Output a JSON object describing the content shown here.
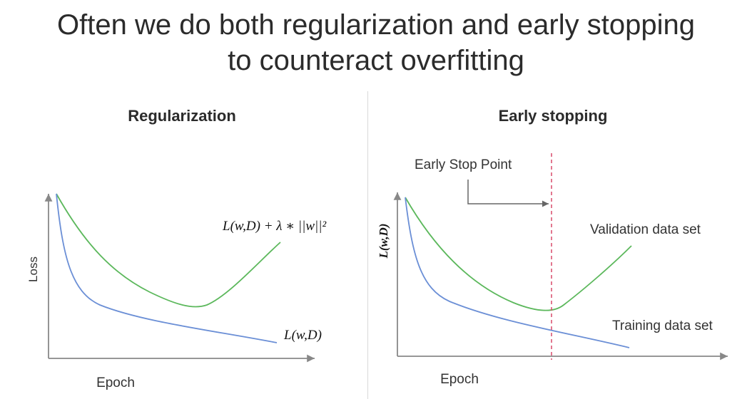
{
  "title": {
    "line1": "Often we do both regularization and early stopping",
    "line2": "to counteract overfitting"
  },
  "left_panel": {
    "title": "Regularization",
    "y_axis_label": "Loss",
    "x_axis_label": "Epoch",
    "upper_curve_label": "L(w,D) + λ ∗ ||w||²",
    "lower_curve_label": "L(w,D)"
  },
  "right_panel": {
    "title": "Early stopping",
    "y_axis_label": "L(w,D)",
    "x_axis_label": "Epoch",
    "stop_point_label": "Early Stop Point",
    "validation_label": "Validation data set",
    "training_label": "Training data set"
  },
  "colors": {
    "validation_curve": "#5cb85c",
    "training_curve": "#6b8fd6",
    "stop_line": "#d94a6a",
    "axis": "#888888"
  }
}
